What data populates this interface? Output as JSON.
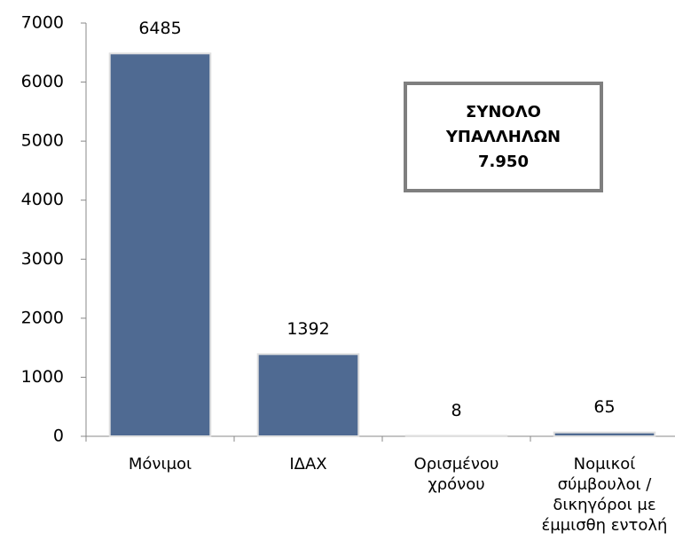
{
  "chart_data": {
    "type": "bar",
    "categories": [
      "Μόνιμοι",
      "ΙΔΑΧ",
      "Ορισμένου χρόνου",
      "Νομικοί σύμβουλοι / δικηγόροι με έμμισθη εντολή"
    ],
    "values": [
      6485,
      1392,
      8,
      65
    ],
    "color": "#4f6a92",
    "ylim": [
      0,
      7000
    ],
    "yticks": [
      0,
      1000,
      2000,
      3000,
      4000,
      5000,
      6000,
      7000
    ],
    "grid": false,
    "annotation": "ΣΥΝΟΛΟ ΥΠΑΛΛΗΛΩΝ 7.950"
  }
}
